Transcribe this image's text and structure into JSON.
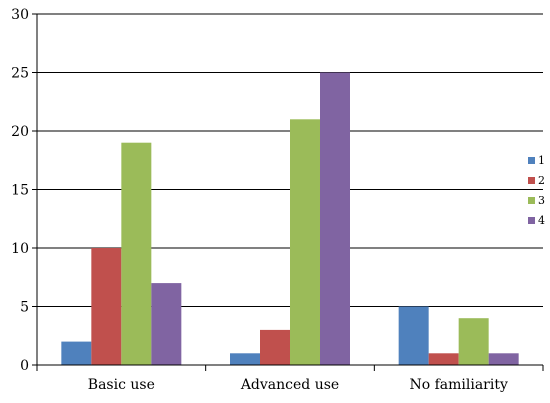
{
  "chart_data": {
    "type": "bar",
    "categories": [
      "Basic use",
      "Advanced use",
      "No familiarity"
    ],
    "series": [
      {
        "name": "1",
        "values": [
          2,
          1,
          5
        ],
        "color": "#4F81BD"
      },
      {
        "name": "2",
        "values": [
          10,
          3,
          1
        ],
        "color": "#C0504D"
      },
      {
        "name": "3",
        "values": [
          19,
          21,
          4
        ],
        "color": "#9BBB59"
      },
      {
        "name": "4",
        "values": [
          7,
          25,
          1
        ],
        "color": "#8064A2"
      }
    ],
    "ylim": [
      0,
      30
    ],
    "yticks": [
      "0",
      "5",
      "10",
      "15",
      "20",
      "25",
      "30"
    ],
    "grid": true,
    "legend": "right"
  }
}
